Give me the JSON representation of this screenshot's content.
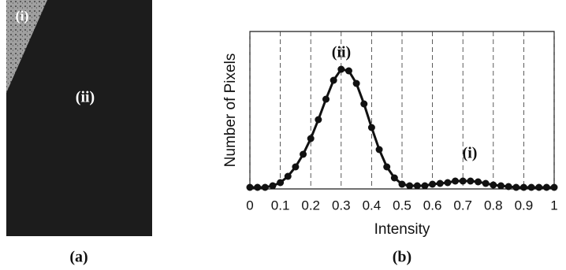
{
  "image_panel": {
    "labels": [
      "(i)",
      "(ii)"
    ],
    "caption": "(a)"
  },
  "chart_data": {
    "type": "line",
    "caption": "(b)",
    "x_label": "Intensity",
    "y_label": "Number of Pixels",
    "annotations": [
      "(ii)",
      "(i)"
    ],
    "x": [
      0,
      0.025,
      0.05,
      0.075,
      0.1,
      0.125,
      0.15,
      0.175,
      0.2,
      0.225,
      0.25,
      0.275,
      0.3,
      0.325,
      0.35,
      0.375,
      0.4,
      0.425,
      0.45,
      0.475,
      0.5,
      0.525,
      0.55,
      0.575,
      0.6,
      0.625,
      0.65,
      0.675,
      0.7,
      0.725,
      0.75,
      0.775,
      0.8,
      0.825,
      0.85,
      0.875,
      0.9,
      0.925,
      0.95,
      0.975,
      1
    ],
    "series": [
      {
        "color": "#111111",
        "values": [
          1,
          1,
          1,
          2,
          4,
          8,
          14,
          22,
          32,
          44,
          57,
          69,
          76,
          75,
          67,
          54,
          39,
          25,
          14,
          7,
          3,
          2,
          2,
          2,
          3,
          3.5,
          4,
          5,
          5,
          5,
          4.5,
          3.5,
          2.5,
          2,
          1.5,
          1,
          1,
          1,
          1,
          1,
          1
        ]
      }
    ],
    "xlim": [
      0,
      1
    ],
    "xticks": [
      0,
      0.1,
      0.2,
      0.3,
      0.4,
      0.5,
      0.6,
      0.7,
      0.8,
      0.9,
      1
    ],
    "ylim": [
      0,
      100
    ],
    "grid": true
  }
}
